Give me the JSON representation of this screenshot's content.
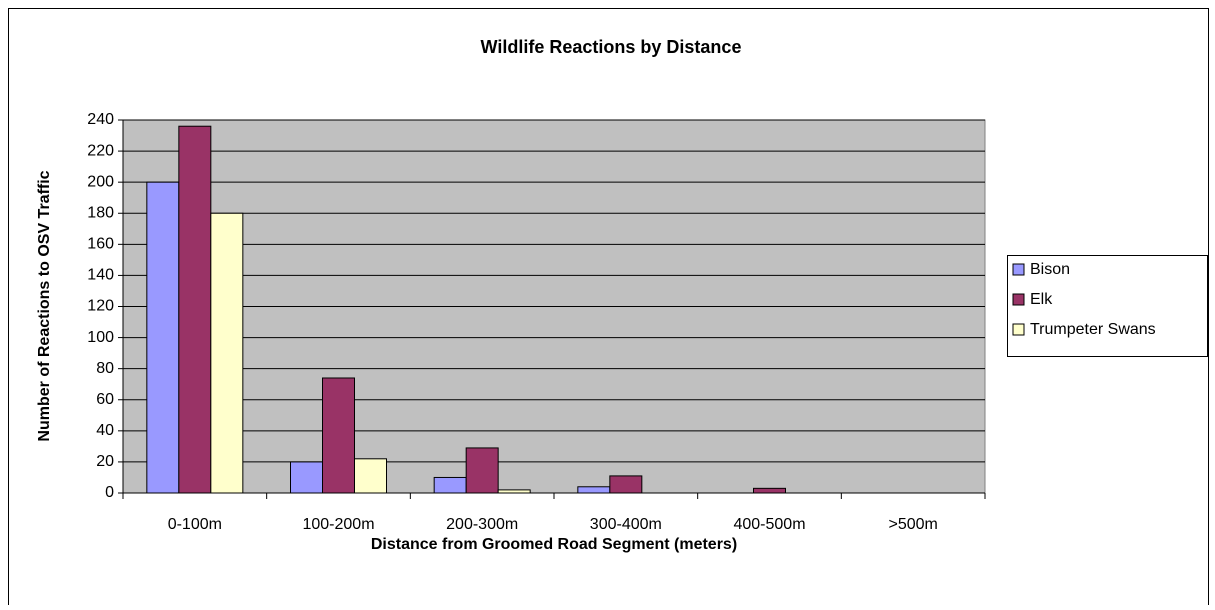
{
  "chart_data": {
    "type": "bar",
    "title": "Wildlife Reactions by Distance",
    "x_label": "Distance from Groomed Road Segment (meters)",
    "y_label": "Number of Reactions to OSV Traffic",
    "categories": [
      "0-100m",
      "100-200m",
      "200-300m",
      "300-400m",
      "400-500m",
      ">500m"
    ],
    "series": [
      {
        "name": "Bison",
        "color": "#9999ff",
        "values": [
          200,
          20,
          10,
          4,
          0,
          0
        ]
      },
      {
        "name": "Elk",
        "color": "#993366",
        "values": [
          236,
          74,
          29,
          11,
          3,
          0
        ]
      },
      {
        "name": "Trumpeter Swans",
        "color": "#ffffcc",
        "values": [
          180,
          22,
          2,
          0,
          0,
          0
        ]
      }
    ],
    "ylim": [
      0,
      240
    ],
    "yticks": [
      0,
      20,
      40,
      60,
      80,
      100,
      120,
      140,
      160,
      180,
      200,
      220,
      240
    ],
    "grid": true,
    "legend": "right"
  }
}
